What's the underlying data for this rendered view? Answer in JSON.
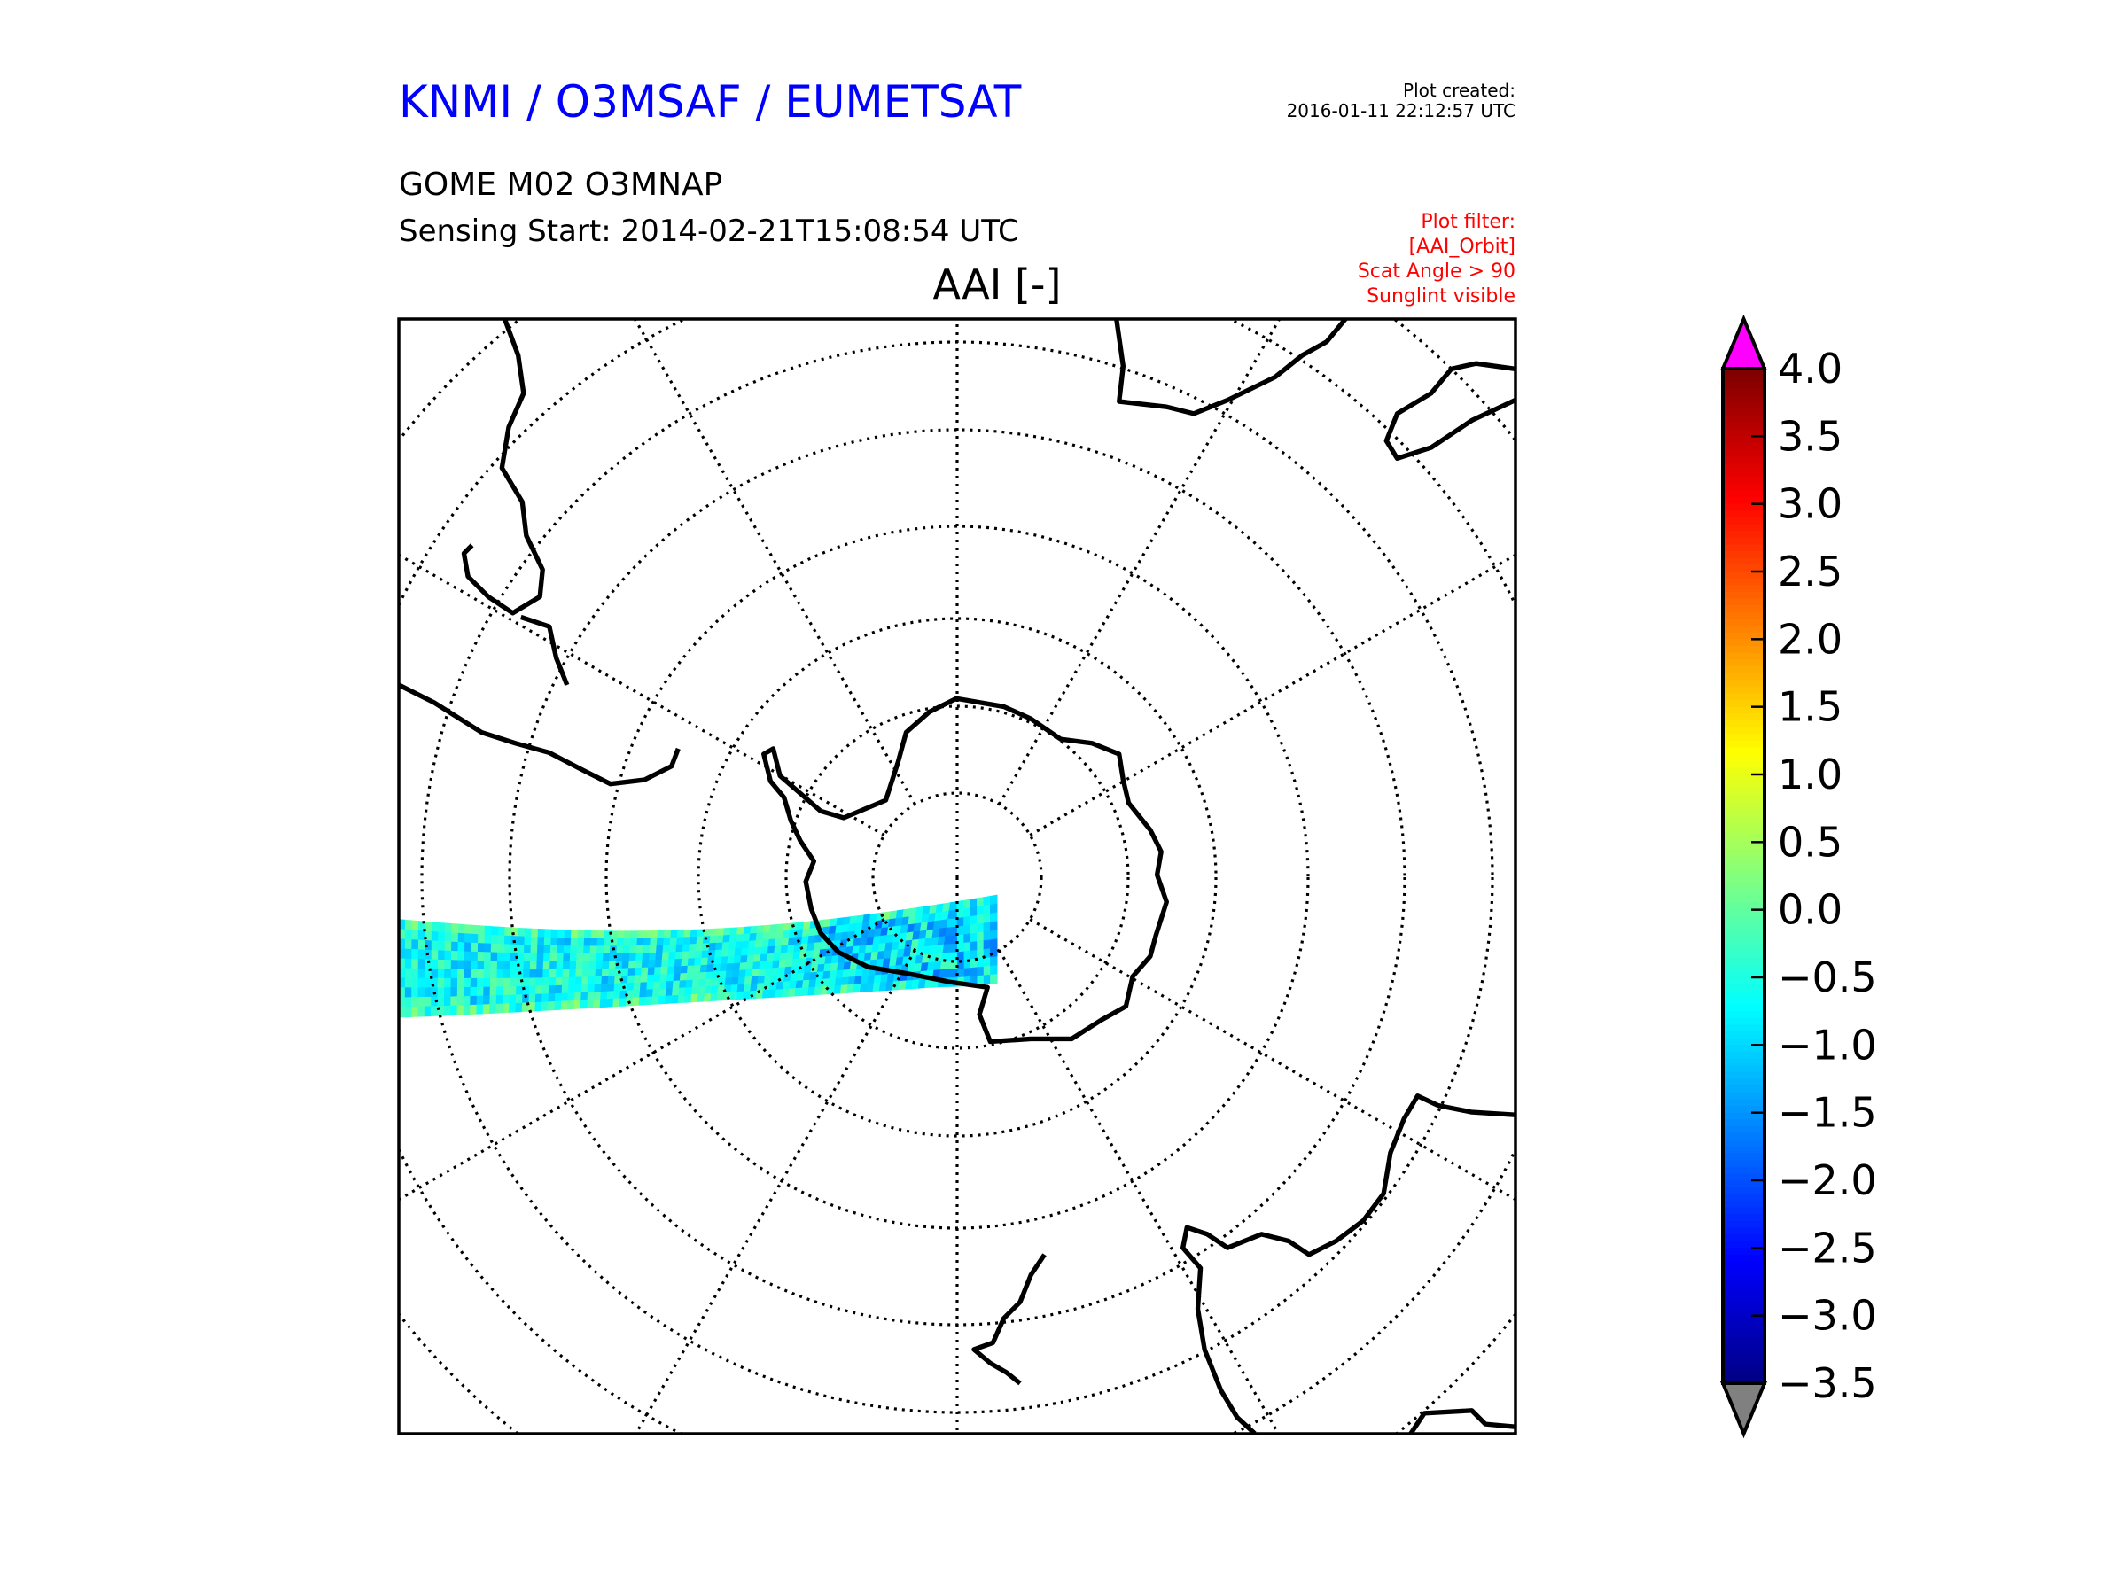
{
  "header": {
    "org_title": "KNMI / O3MSAF / EUMETSAT",
    "product": "GOME M02 O3MNAP",
    "sensing_start": "Sensing Start: 2014-02-21T15:08:54 UTC",
    "plot_created_label": "Plot created:",
    "plot_created_value": "2016-01-11 22:12:57 UTC",
    "filter_lines": [
      "Plot filter:",
      "[AAI_Orbit]",
      "Scat Angle > 90",
      "Sunglint visible"
    ]
  },
  "map": {
    "title": "AAI [-]",
    "projection": "south polar stereographic"
  },
  "colors": {
    "title": "#0000ff",
    "filter": "#ff0000",
    "over": "#ff00ff",
    "under": "#808080"
  },
  "chart_data": {
    "type": "heatmap",
    "title": "AAI [-]",
    "colorbar": {
      "min": -3.5,
      "max": 4.0,
      "ticks": [
        "4.0",
        "3.5",
        "3.0",
        "2.5",
        "2.0",
        "1.5",
        "1.0",
        "0.5",
        "0.0",
        "−0.5",
        "−1.0",
        "−1.5",
        "−2.0",
        "−2.5",
        "−3.0",
        "−3.5"
      ],
      "extend": "both",
      "colormap": "jet"
    }
  }
}
